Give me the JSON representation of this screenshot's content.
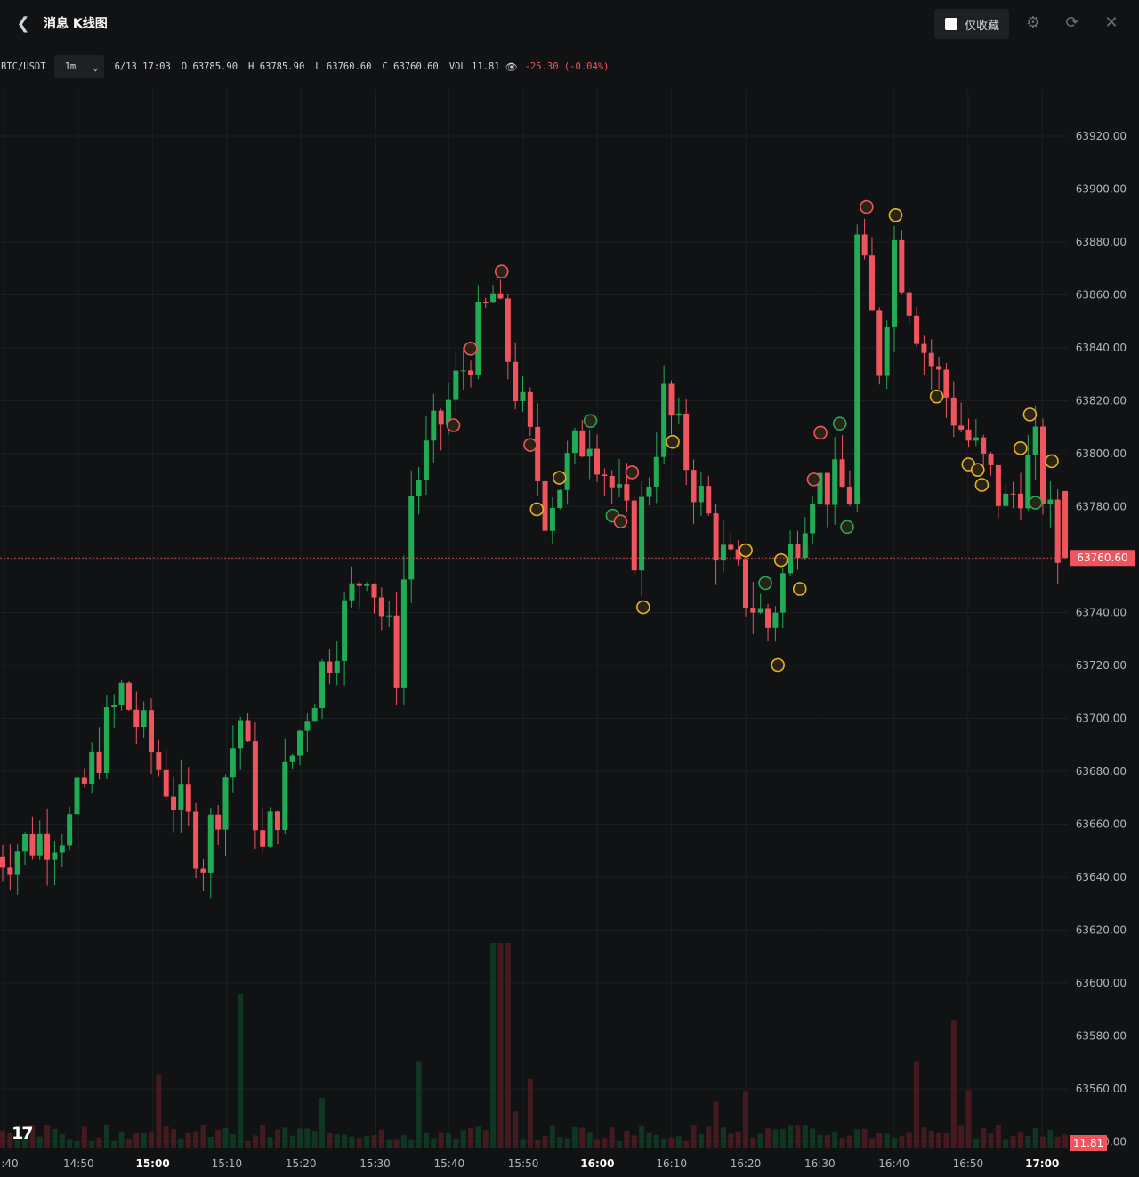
{
  "header": {
    "title": "消息 K线图",
    "favorites_label": "仅收藏"
  },
  "legend": {
    "symbol": "BTC/USDT",
    "interval": "1m",
    "datetime": "6/13 17:03",
    "open_key": "O",
    "open": "63785.90",
    "high_key": "H",
    "high": "63785.90",
    "low_key": "L",
    "low": "63760.60",
    "close_key": "C",
    "close": "63760.60",
    "vol_key": "VOL",
    "vol": "11.81",
    "change": "-25.30 (-0.04%)"
  },
  "colors": {
    "up": "#22ab55",
    "down": "#f0555e",
    "marker_yellow": "#e8b321",
    "marker_green": "#22ab55",
    "marker_red": "#f0555e"
  },
  "chart_data": {
    "type": "candlestick",
    "y_axis_ticks": [
      "63920.00",
      "63900.00",
      "63880.00",
      "63860.00",
      "63840.00",
      "63820.00",
      "63800.00",
      "63780.00",
      "63760.00",
      "63740.00",
      "63720.00",
      "63700.00",
      "63680.00",
      "63660.00",
      "63640.00",
      "63620.00",
      "63600.00",
      "63580.00",
      "63560.00",
      "63540.00"
    ],
    "x_axis_ticks": [
      {
        "label": ":40",
        "bold": false
      },
      {
        "label": "14:50",
        "bold": false
      },
      {
        "label": "15:00",
        "bold": true
      },
      {
        "label": "15:10",
        "bold": false
      },
      {
        "label": "15:20",
        "bold": false
      },
      {
        "label": "15:30",
        "bold": false
      },
      {
        "label": "15:40",
        "bold": false
      },
      {
        "label": "15:50",
        "bold": false
      },
      {
        "label": "16:00",
        "bold": true
      },
      {
        "label": "16:10",
        "bold": false
      },
      {
        "label": "16:20",
        "bold": false
      },
      {
        "label": "16:30",
        "bold": false
      },
      {
        "label": "16:40",
        "bold": false
      },
      {
        "label": "16:50",
        "bold": false
      },
      {
        "label": "17:00",
        "bold": true
      }
    ],
    "current_price": "63760.60",
    "current_volume": "11.81",
    "y_range": [
      63540,
      63930
    ],
    "time_range": [
      "14:39",
      "17:03"
    ],
    "key_points": [
      {
        "t": "14:40",
        "price": 63648
      },
      {
        "t": "14:50",
        "price": 63660
      },
      {
        "t": "14:57",
        "price": 63710
      },
      {
        "t": "15:08",
        "price": 63648
      },
      {
        "t": "15:13",
        "price": 63700
      },
      {
        "t": "15:16",
        "price": 63648
      },
      {
        "t": "15:22",
        "price": 63705
      },
      {
        "t": "15:30",
        "price": 63760
      },
      {
        "t": "15:34",
        "price": 63720
      },
      {
        "t": "15:36",
        "price": 63785
      },
      {
        "t": "15:47",
        "price": 63860
      },
      {
        "t": "15:54",
        "price": 63780
      },
      {
        "t": "16:00",
        "price": 63810
      },
      {
        "t": "16:06",
        "price": 63765
      },
      {
        "t": "16:10",
        "price": 63820
      },
      {
        "t": "16:18",
        "price": 63760
      },
      {
        "t": "16:24",
        "price": 63735
      },
      {
        "t": "16:30",
        "price": 63790
      },
      {
        "t": "16:35",
        "price": 63785
      },
      {
        "t": "16:36",
        "price": 63880
      },
      {
        "t": "16:39",
        "price": 63835
      },
      {
        "t": "16:41",
        "price": 63880
      },
      {
        "t": "16:45",
        "price": 63840
      },
      {
        "t": "16:50",
        "price": 63810
      },
      {
        "t": "16:56",
        "price": 63780
      },
      {
        "t": "17:00",
        "price": 63800
      },
      {
        "t": "17:03",
        "price": 63760.6
      }
    ]
  }
}
